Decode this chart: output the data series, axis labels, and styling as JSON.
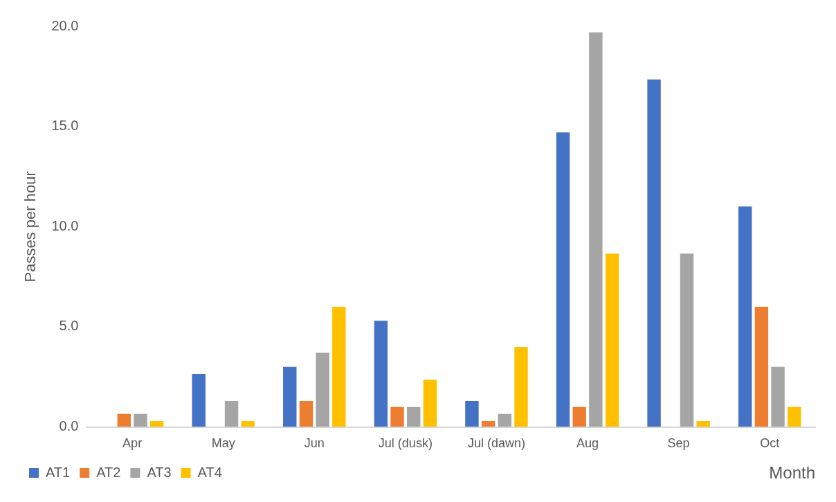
{
  "chart_data": {
    "type": "bar",
    "ylabel": "Passes per hour",
    "xlabel": "Month",
    "categories": [
      "Apr",
      "May",
      "Jun",
      "Jul (dusk)",
      "Jul (dawn)",
      "Aug",
      "Sep",
      "Oct"
    ],
    "series": [
      {
        "name": "AT1",
        "color": "#4472c4",
        "values": [
          0,
          2.65,
          3.0,
          5.3,
          1.3,
          14.7,
          17.35,
          11.0
        ]
      },
      {
        "name": "AT2",
        "color": "#ed7d31",
        "values": [
          0.65,
          0,
          1.3,
          1.0,
          0.3,
          1.0,
          0,
          6.0
        ]
      },
      {
        "name": "AT3",
        "color": "#a5a5a5",
        "values": [
          0.65,
          1.3,
          3.7,
          1.0,
          0.65,
          19.7,
          8.65,
          3.0
        ]
      },
      {
        "name": "AT4",
        "color": "#ffc000",
        "values": [
          0.3,
          0.3,
          6.0,
          2.35,
          4.0,
          8.65,
          0.3,
          1.0
        ]
      }
    ],
    "ylim": [
      0,
      20
    ],
    "yticks": [
      {
        "value": 0,
        "label": "0.0"
      },
      {
        "value": 5,
        "label": "5.0"
      },
      {
        "value": 10,
        "label": "10.0"
      },
      {
        "value": 15,
        "label": "15.0"
      },
      {
        "value": 20,
        "label": "20.0"
      }
    ],
    "grid": false,
    "legend": "bottom left"
  }
}
